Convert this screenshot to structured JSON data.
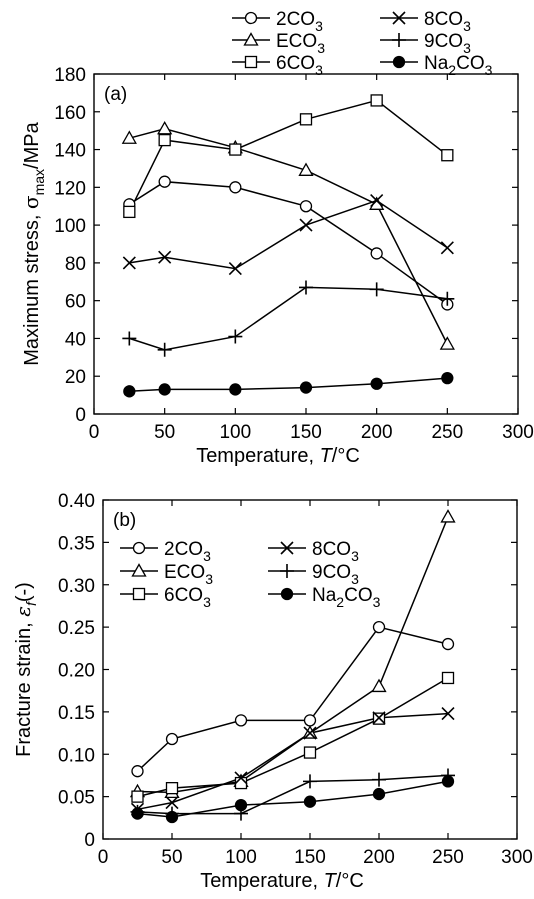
{
  "series_names": {
    "s2": [
      "2CO",
      "3",
      ""
    ],
    "sE": [
      "ECO",
      "3",
      ""
    ],
    "s6": [
      "6CO",
      "3",
      ""
    ],
    "s8": [
      "8CO",
      "3",
      ""
    ],
    "s9": [
      "9CO",
      "3",
      ""
    ],
    "sNa": [
      "Na",
      "2",
      "CO",
      "3",
      ""
    ]
  },
  "chart_data": [
    {
      "type": "line",
      "panel_label": "(a)",
      "xlabel": "Temperature, T/°C",
      "ylabel": "Maximum stress, σmax/MPa",
      "xlim": [
        0,
        300
      ],
      "ylim": [
        0,
        180
      ],
      "xticks": [
        "0",
        "50",
        "100",
        "150",
        "200",
        "250",
        "300"
      ],
      "yticks": [
        "0",
        "20",
        "40",
        "60",
        "80",
        "100",
        "120",
        "140",
        "160",
        "180"
      ],
      "legend_position": "top, above plot",
      "series": [
        {
          "key": "s2",
          "marker": "circle-open",
          "points": [
            [
              25,
              111
            ],
            [
              50,
              123
            ],
            [
              100,
              120
            ],
            [
              150,
              110
            ],
            [
              200,
              85
            ],
            [
              250,
              58
            ]
          ]
        },
        {
          "key": "sE",
          "marker": "triangle-open",
          "points": [
            [
              25,
              146
            ],
            [
              50,
              151
            ],
            [
              100,
              141
            ],
            [
              150,
              129
            ],
            [
              200,
              111
            ],
            [
              250,
              37
            ]
          ]
        },
        {
          "key": "s6",
          "marker": "square-open",
          "points": [
            [
              25,
              107
            ],
            [
              50,
              145
            ],
            [
              100,
              140
            ],
            [
              150,
              156
            ],
            [
              200,
              166
            ],
            [
              250,
              137
            ]
          ]
        },
        {
          "key": "s8",
          "marker": "x",
          "points": [
            [
              25,
              80
            ],
            [
              50,
              83
            ],
            [
              100,
              77
            ],
            [
              150,
              100
            ],
            [
              200,
              113
            ],
            [
              250,
              88
            ]
          ]
        },
        {
          "key": "s9",
          "marker": "plus",
          "points": [
            [
              25,
              40
            ],
            [
              50,
              34
            ],
            [
              100,
              41
            ],
            [
              150,
              67
            ],
            [
              200,
              66
            ],
            [
              250,
              61
            ]
          ]
        },
        {
          "key": "sNa",
          "marker": "circle-filled",
          "points": [
            [
              25,
              12
            ],
            [
              50,
              13
            ],
            [
              100,
              13
            ],
            [
              150,
              14
            ],
            [
              200,
              16
            ],
            [
              250,
              19
            ]
          ]
        }
      ]
    },
    {
      "type": "line",
      "panel_label": "(b)",
      "xlabel": "Temperature, T/°C",
      "ylabel": "Fracture strain, εf(-)",
      "xlim": [
        0,
        300
      ],
      "ylim": [
        0,
        0.4
      ],
      "xticks": [
        "0",
        "50",
        "100",
        "150",
        "200",
        "250",
        "300"
      ],
      "yticks": [
        "0",
        "0.05",
        "0.10",
        "0.15",
        "0.20",
        "0.25",
        "0.30",
        "0.35",
        "0.40"
      ],
      "legend_position": "top-left, inside plot",
      "series": [
        {
          "key": "s2",
          "marker": "circle-open",
          "points": [
            [
              25,
              0.08
            ],
            [
              50,
              0.118
            ],
            [
              100,
              0.14
            ],
            [
              150,
              0.14
            ],
            [
              200,
              0.25
            ],
            [
              250,
              0.23
            ]
          ]
        },
        {
          "key": "sE",
          "marker": "triangle-open",
          "points": [
            [
              25,
              0.056
            ],
            [
              50,
              0.055
            ],
            [
              100,
              0.068
            ],
            [
              150,
              0.125
            ],
            [
              200,
              0.18
            ],
            [
              250,
              0.38
            ]
          ]
        },
        {
          "key": "s6",
          "marker": "square-open",
          "points": [
            [
              25,
              0.05
            ],
            [
              50,
              0.06
            ],
            [
              100,
              0.066
            ],
            [
              150,
              0.102
            ],
            [
              200,
              0.142
            ],
            [
              250,
              0.19
            ]
          ]
        },
        {
          "key": "s8",
          "marker": "x",
          "points": [
            [
              25,
              0.035
            ],
            [
              50,
              0.043
            ],
            [
              100,
              0.072
            ],
            [
              150,
              0.125
            ],
            [
              200,
              0.143
            ],
            [
              250,
              0.148
            ]
          ]
        },
        {
          "key": "s9",
          "marker": "plus",
          "points": [
            [
              25,
              0.032
            ],
            [
              50,
              0.03
            ],
            [
              100,
              0.03
            ],
            [
              150,
              0.068
            ],
            [
              200,
              0.07
            ],
            [
              250,
              0.075
            ]
          ]
        },
        {
          "key": "sNa",
          "marker": "circle-filled",
          "points": [
            [
              25,
              0.03
            ],
            [
              50,
              0.026
            ],
            [
              100,
              0.04
            ],
            [
              150,
              0.044
            ],
            [
              200,
              0.053
            ],
            [
              250,
              0.068
            ]
          ]
        }
      ]
    }
  ]
}
